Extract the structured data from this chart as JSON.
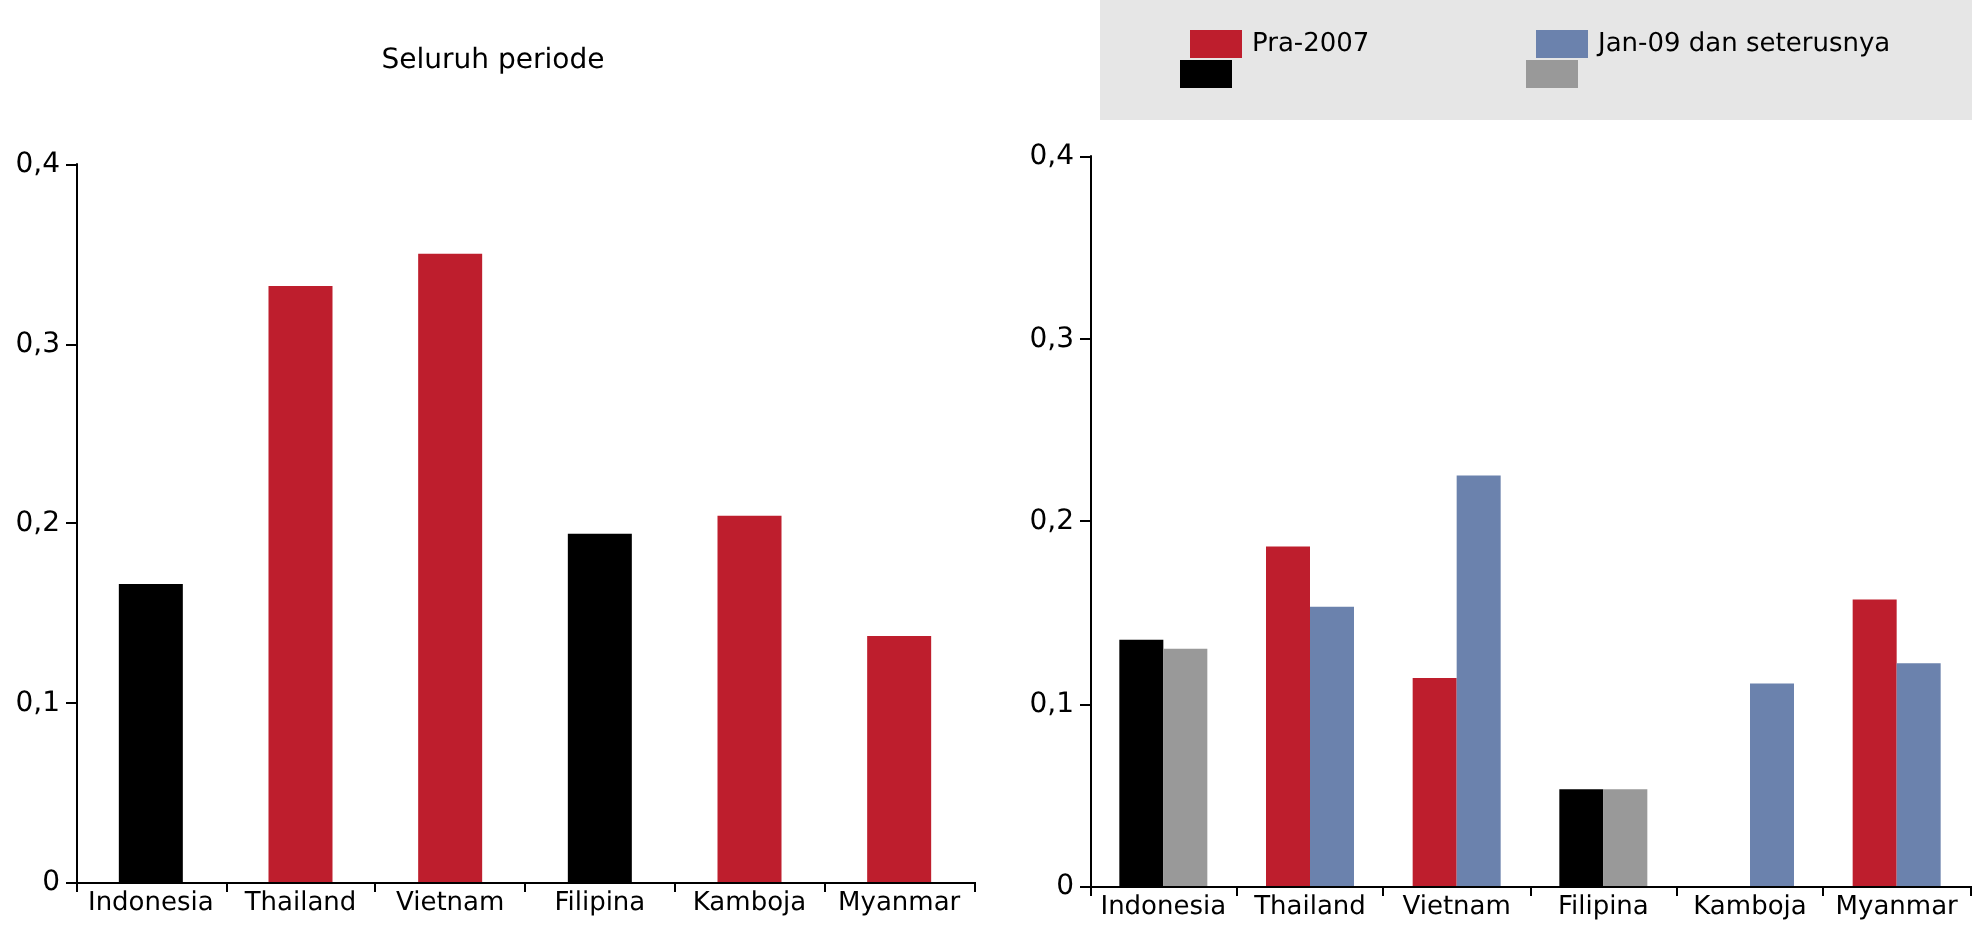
{
  "chart_data": [
    {
      "type": "bar",
      "title": "Seluruh periode",
      "categories": [
        "Indonesia",
        "Thailand",
        "Vietnam",
        "Filipina",
        "Kamboja",
        "Myanmar"
      ],
      "series": [
        {
          "colors": [
            "#000000",
            "#be1e2d",
            "#be1e2d",
            "#000000",
            "#be1e2d",
            "#be1e2d"
          ],
          "values": [
            0.166,
            0.332,
            0.35,
            0.194,
            0.204,
            0.137
          ]
        }
      ],
      "ylim": [
        0,
        0.4
      ],
      "yticks": [
        0,
        {
          "value": 0.1,
          "label": "0,1"
        },
        {
          "value": 0.2,
          "label": "0,2"
        },
        {
          "value": 0.3,
          "label": "0,3"
        },
        {
          "value": 0.4,
          "label": "0,4"
        }
      ],
      "grid": false
    },
    {
      "type": "bar",
      "categories": [
        "Indonesia",
        "Thailand",
        "Vietnam",
        "Filipina",
        "Kamboja",
        "Myanmar"
      ],
      "series": [
        {
          "name": "Pra-2007",
          "color": "#be1e2d",
          "colors": [
            "#000000",
            "#be1e2d",
            "#be1e2d",
            "#000000",
            "#be1e2d",
            "#be1e2d"
          ],
          "values": [
            0.135,
            0.186,
            0.114,
            0.053,
            null,
            0.157
          ]
        },
        {
          "name": "Jan-09 dan seterusnya",
          "color": "#6b82ad",
          "colors": [
            "#999999",
            "#6b82ad",
            "#6b82ad",
            "#999999",
            "#6b82ad",
            "#6b82ad"
          ],
          "values": [
            0.13,
            0.153,
            0.225,
            0.053,
            0.111,
            0.122
          ]
        }
      ],
      "ylim": [
        0,
        0.4
      ],
      "yticks": [
        0,
        {
          "value": 0.1,
          "label": "0,1"
        },
        {
          "value": 0.2,
          "label": "0,2"
        },
        {
          "value": 0.3,
          "label": "0,3"
        },
        {
          "value": 0.4,
          "label": "0,4"
        }
      ],
      "grid": false,
      "legend": "top right"
    }
  ]
}
